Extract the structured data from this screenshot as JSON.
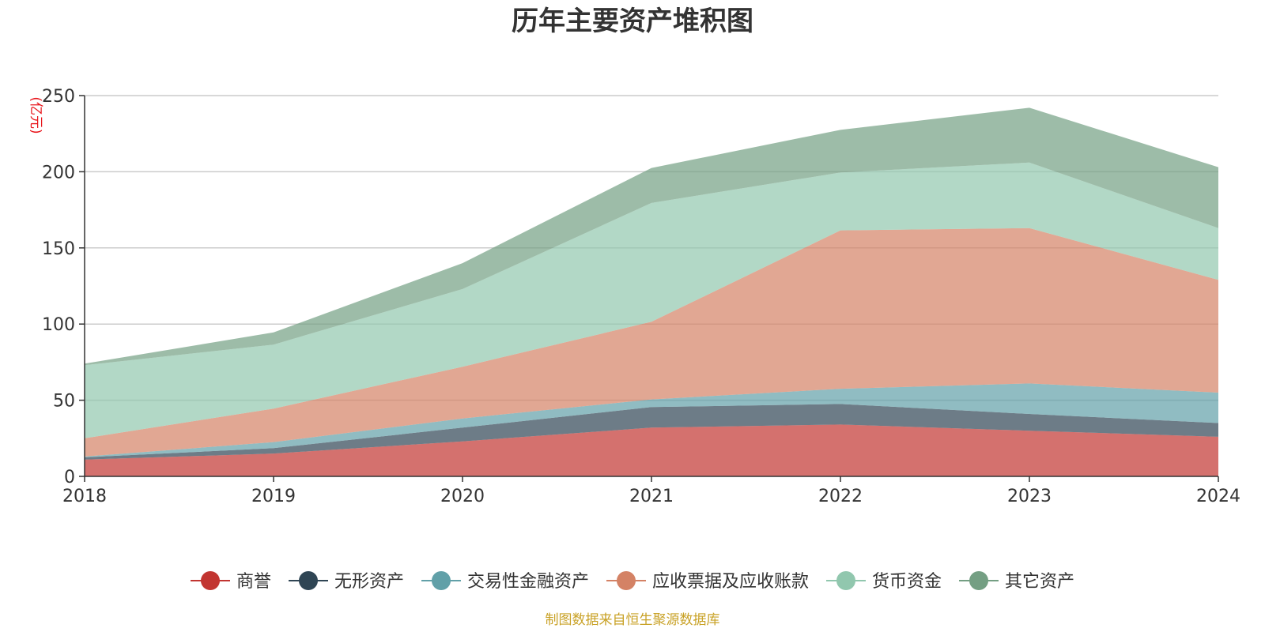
{
  "chart_data": {
    "type": "area",
    "stacked": true,
    "title": "历年主要资产堆积图",
    "unit_label": "(亿元)",
    "x": [
      "2018",
      "2019",
      "2020",
      "2021",
      "2022",
      "2023",
      "2024"
    ],
    "ylim": [
      0,
      250
    ],
    "yticks": [
      0,
      50,
      100,
      150,
      200,
      250
    ],
    "grid": true,
    "legend_position": "bottom",
    "series": [
      {
        "name": "商誉",
        "color": "#c23531",
        "values": [
          11,
          15,
          23,
          32,
          34,
          30,
          26
        ]
      },
      {
        "name": "无形资产",
        "color": "#2f4554",
        "values": [
          1.5,
          3.5,
          9,
          13.5,
          13.5,
          11,
          9
        ]
      },
      {
        "name": "交易性金融资产",
        "color": "#61a0a8",
        "values": [
          0.5,
          4,
          6,
          5,
          10,
          20,
          20
        ]
      },
      {
        "name": "应收票据及应收账款",
        "color": "#d48265",
        "values": [
          12,
          22,
          34,
          51,
          104,
          102,
          74
        ]
      },
      {
        "name": "货币资金",
        "color": "#91c7ae",
        "values": [
          48,
          42,
          51,
          78,
          38,
          43,
          34
        ]
      },
      {
        "name": "其它资产",
        "color": "#749f83",
        "values": [
          1,
          8,
          17,
          23,
          28,
          36,
          40
        ]
      }
    ],
    "source": "制图数据来自恒生聚源数据库"
  }
}
